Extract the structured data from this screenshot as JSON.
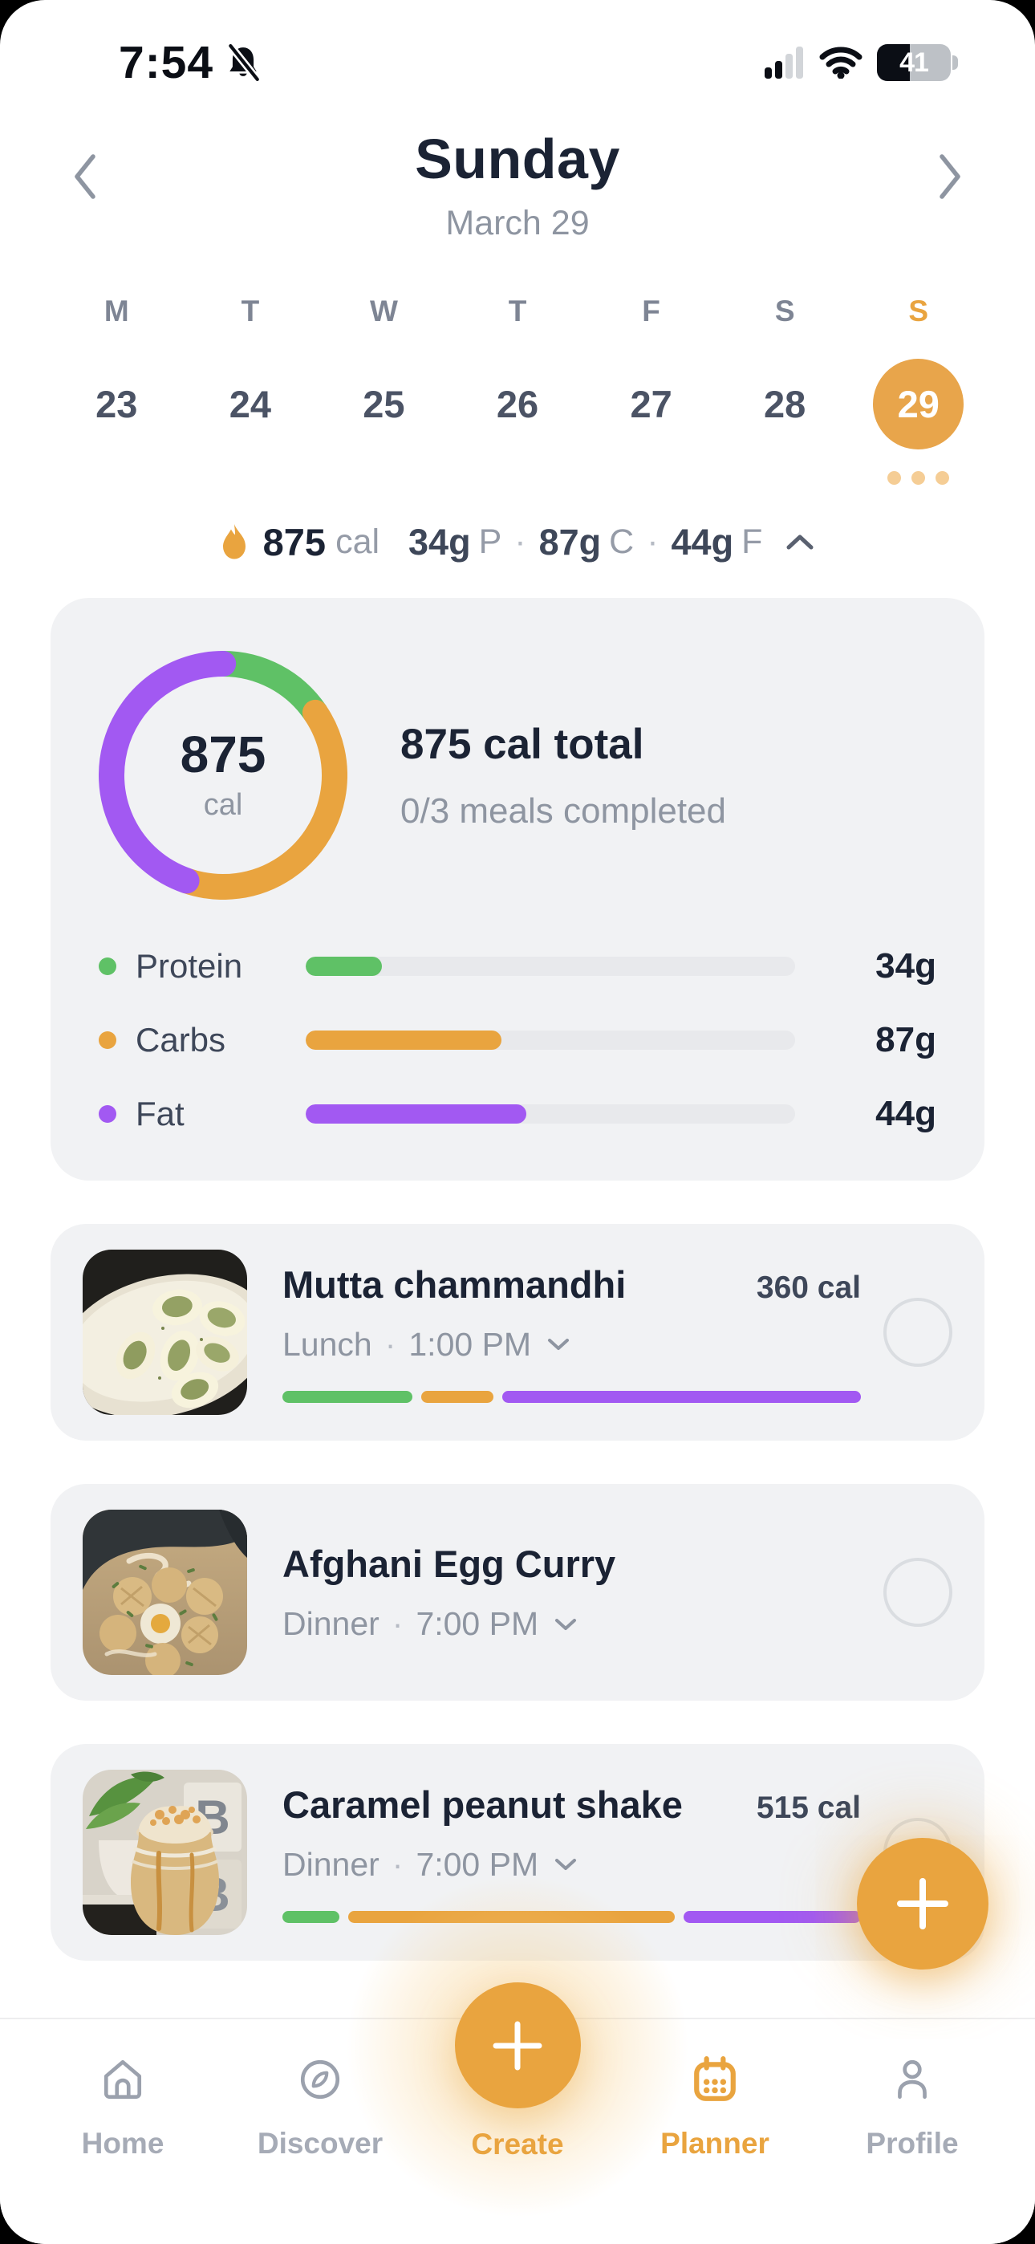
{
  "status_bar": {
    "time": "7:54",
    "battery_percent": "41",
    "battery_fill": "45%",
    "icons": [
      "bell-slash-icon",
      "cellular-signal-icon",
      "wifi-icon",
      "battery-icon"
    ]
  },
  "header": {
    "title": "Sunday",
    "subtitle": "March 29"
  },
  "week": {
    "cells": [
      {
        "letter": "M",
        "date": "23"
      },
      {
        "letter": "T",
        "date": "24"
      },
      {
        "letter": "W",
        "date": "25"
      },
      {
        "letter": "T",
        "date": "26"
      },
      {
        "letter": "F",
        "date": "27"
      },
      {
        "letter": "S",
        "date": "28"
      },
      {
        "letter": "S",
        "date": "29"
      }
    ],
    "selected_index": 6,
    "selected_dot_count": 3
  },
  "summary_bar": {
    "calories_value": "875",
    "calories_unit": "cal",
    "separator": "·",
    "macros": [
      {
        "value": "34g",
        "label": "P"
      },
      {
        "value": "87g",
        "label": "C"
      },
      {
        "value": "44g",
        "label": "F"
      }
    ]
  },
  "macro_card": {
    "donut_value": "875",
    "donut_unit": "cal",
    "title": "875 cal total",
    "subtitle": "0/3 meals completed",
    "donut_segments": [
      {
        "name": "protein",
        "color": "#5fc166",
        "pct": 15.5
      },
      {
        "name": "carbs",
        "color": "#e9a43f",
        "pct": 39.8
      },
      {
        "name": "fat",
        "color": "#a259f2",
        "pct": 44.7
      }
    ],
    "rows": [
      {
        "label": "Protein",
        "value": "34g",
        "color": "#5fc166",
        "width": "15.5%"
      },
      {
        "label": "Carbs",
        "value": "87g",
        "color": "#e9a43f",
        "width": "40%"
      },
      {
        "label": "Fat",
        "value": "44g",
        "color": "#a259f2",
        "width": "45%"
      }
    ]
  },
  "meals": [
    {
      "title": "Mutta chammandhi",
      "calories": "360 cal",
      "meal_type": "Lunch",
      "time": "1:00 PM",
      "separator": "·",
      "segments": [
        {
          "name": "protein",
          "color": "#5fc166",
          "width": "22.5%"
        },
        {
          "name": "carbs",
          "color": "#e9a43f",
          "width": "12.5%"
        },
        {
          "name": "fat",
          "color": "#a259f2",
          "width": "62%"
        }
      ]
    },
    {
      "title": "Afghani Egg Curry",
      "meal_type": "Dinner",
      "time": "7:00 PM",
      "separator": "·"
    },
    {
      "title": "Caramel peanut shake",
      "calories": "515 cal",
      "meal_type": "Dinner",
      "time": "7:00 PM",
      "separator": "·",
      "photo_letter": "B",
      "segments": [
        {
          "name": "protein",
          "color": "#5fc166",
          "width": "10%"
        },
        {
          "name": "carbs",
          "color": "#e9a43f",
          "width": "57%"
        },
        {
          "name": "fat",
          "color": "#a259f2",
          "width": "31%"
        }
      ]
    }
  ],
  "nav": {
    "accent_color": "#e9a43f",
    "items": [
      {
        "label": "Home"
      },
      {
        "label": "Discover"
      },
      {
        "label": "Create"
      },
      {
        "label": "Planner"
      },
      {
        "label": "Profile"
      }
    ]
  }
}
